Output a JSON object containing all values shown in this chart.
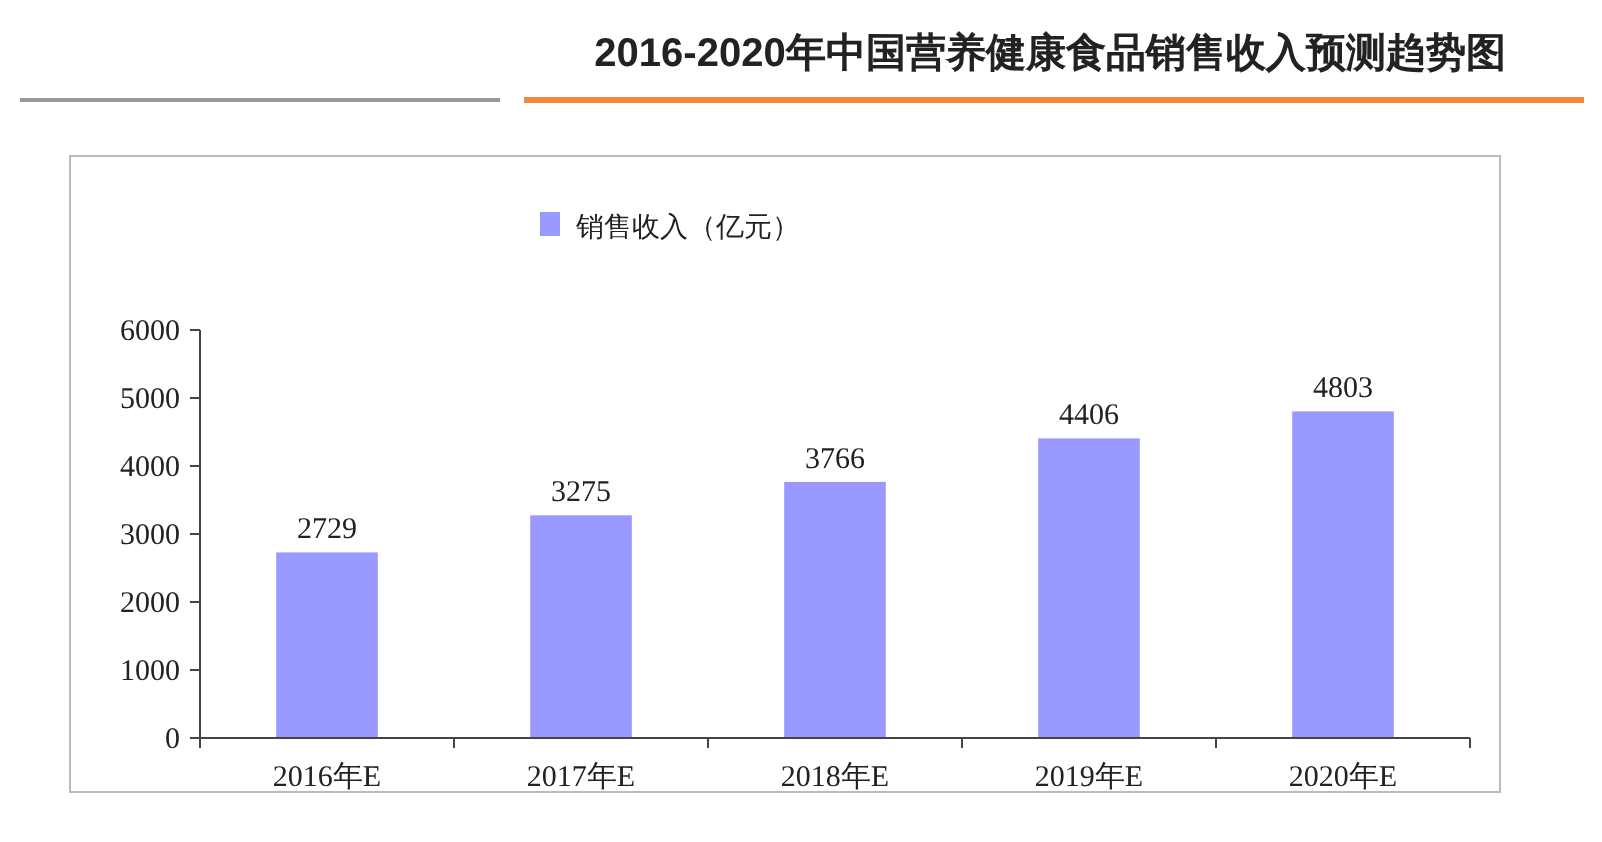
{
  "chart_data": {
    "type": "bar",
    "title": "2016-2020年中国营养健康食品销售收入预测趋势图",
    "categories": [
      "2016年E",
      "2017年E",
      "2018年E",
      "2019年E",
      "2020年E"
    ],
    "series": [
      {
        "name": "销售收入（亿元）",
        "color": "#9999ff",
        "values": [
          2729,
          3275,
          3766,
          4406,
          4803
        ]
      }
    ],
    "ylim": [
      0,
      6000
    ],
    "yticks": [
      0,
      1000,
      2000,
      3000,
      4000,
      5000,
      6000
    ],
    "data_labels": true,
    "legend": "top left",
    "grid": false
  }
}
